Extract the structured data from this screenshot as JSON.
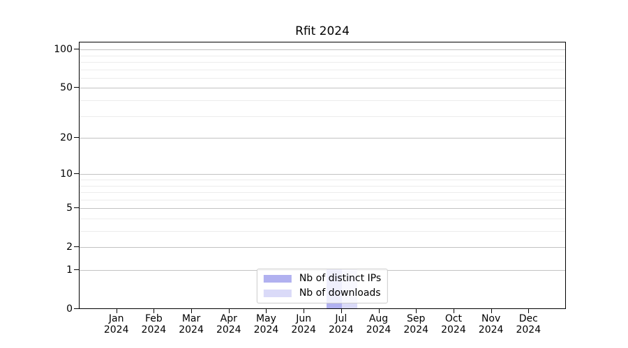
{
  "chart_data": {
    "type": "bar",
    "title": "Rfit 2024",
    "categories": [
      {
        "label": "Jan",
        "sub": "2024"
      },
      {
        "label": "Feb",
        "sub": "2024"
      },
      {
        "label": "Mar",
        "sub": "2024"
      },
      {
        "label": "Apr",
        "sub": "2024"
      },
      {
        "label": "May",
        "sub": "2024"
      },
      {
        "label": "Jun",
        "sub": "2024"
      },
      {
        "label": "Jul",
        "sub": "2024"
      },
      {
        "label": "Aug",
        "sub": "2024"
      },
      {
        "label": "Sep",
        "sub": "2024"
      },
      {
        "label": "Oct",
        "sub": "2024"
      },
      {
        "label": "Nov",
        "sub": "2024"
      },
      {
        "label": "Dec",
        "sub": "2024"
      }
    ],
    "series": [
      {
        "name": "Nb of distinct IPs",
        "color": "#b1b1f0",
        "values": [
          0,
          0,
          0,
          0,
          0,
          0,
          1,
          0,
          0,
          0,
          0,
          0
        ]
      },
      {
        "name": "Nb of downloads",
        "color": "#dadaf8",
        "values": [
          0,
          0,
          0,
          0,
          0,
          0,
          1,
          0,
          0,
          0,
          0,
          0
        ]
      }
    ],
    "xlabel": "",
    "ylabel": "",
    "yscale": "log1p",
    "ylim": [
      0,
      115
    ],
    "yticks": [
      0,
      1,
      2,
      5,
      10,
      20,
      50,
      100
    ],
    "minor_gridlines": [
      3,
      4,
      6,
      7,
      8,
      9,
      30,
      40,
      60,
      70,
      80,
      90
    ],
    "grid": "horizontal",
    "legend_position": "lower center"
  },
  "colors": {
    "frame": "#000000",
    "major_grid": "#c2c2c2",
    "minor_grid": "#ececec",
    "legend_border": "#cccccc"
  }
}
